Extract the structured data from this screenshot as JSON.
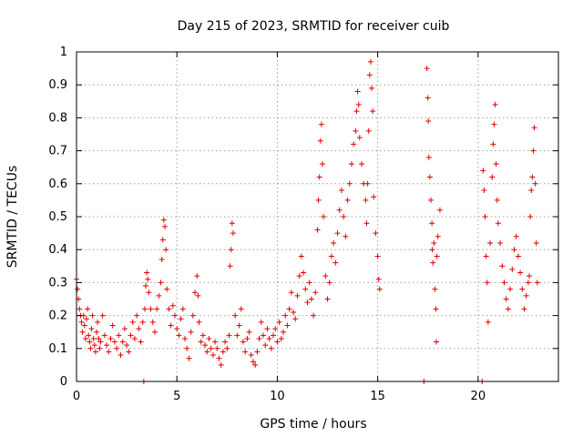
{
  "chart_data": {
    "type": "scatter",
    "title": "Day 215 of 2023, SRMTID for receiver cuib",
    "xlabel": "GPS time / hours",
    "ylabel": "SRMTID / TECUs",
    "xlim": [
      0,
      24
    ],
    "ylim": [
      0,
      1
    ],
    "xticks": [
      0,
      5,
      10,
      15,
      20
    ],
    "yticks": [
      0,
      0.1,
      0.2,
      0.3,
      0.4,
      0.5,
      0.6,
      0.7,
      0.8,
      0.9,
      1
    ],
    "xtick_labels": [
      "0",
      "5",
      "10",
      "15",
      "20"
    ],
    "ytick_labels": [
      "0",
      "0.1",
      "0.2",
      "0.3",
      "0.4",
      "0.5",
      "0.6",
      "0.7",
      "0.8",
      "0.9",
      "1"
    ],
    "grid": true,
    "marker": "plus",
    "color": "#e00000",
    "series": [
      {
        "name": "SRMTID",
        "points": [
          [
            0.0,
            0.31
          ],
          [
            0.05,
            0.28
          ],
          [
            0.1,
            0.25
          ],
          [
            0.15,
            0.22
          ],
          [
            0.2,
            0.2
          ],
          [
            0.25,
            0.18
          ],
          [
            0.3,
            0.15
          ],
          [
            0.35,
            0.2
          ],
          [
            0.4,
            0.17
          ],
          [
            0.45,
            0.13
          ],
          [
            0.5,
            0.19
          ],
          [
            0.55,
            0.22
          ],
          [
            0.6,
            0.14
          ],
          [
            0.65,
            0.12
          ],
          [
            0.7,
            0.1
          ],
          [
            0.75,
            0.16
          ],
          [
            0.8,
            0.2
          ],
          [
            0.85,
            0.13
          ],
          [
            0.9,
            0.11
          ],
          [
            0.95,
            0.09
          ],
          [
            1.0,
            0.15
          ],
          [
            1.05,
            0.18
          ],
          [
            1.1,
            0.13
          ],
          [
            1.15,
            0.1
          ],
          [
            1.2,
            0.12
          ],
          [
            1.3,
            0.2
          ],
          [
            1.4,
            0.14
          ],
          [
            1.5,
            0.11
          ],
          [
            1.6,
            0.09
          ],
          [
            1.7,
            0.13
          ],
          [
            1.8,
            0.17
          ],
          [
            1.9,
            0.12
          ],
          [
            2.0,
            0.1
          ],
          [
            2.1,
            0.14
          ],
          [
            2.2,
            0.08
          ],
          [
            2.3,
            0.12
          ],
          [
            2.4,
            0.16
          ],
          [
            2.5,
            0.11
          ],
          [
            2.6,
            0.09
          ],
          [
            2.7,
            0.14
          ],
          [
            2.8,
            0.18
          ],
          [
            2.9,
            0.13
          ],
          [
            3.0,
            0.2
          ],
          [
            3.1,
            0.16
          ],
          [
            3.2,
            0.12
          ],
          [
            3.3,
            0.18
          ],
          [
            3.35,
            0.0
          ],
          [
            3.4,
            0.22
          ],
          [
            3.45,
            0.29
          ],
          [
            3.5,
            0.33
          ],
          [
            3.55,
            0.31
          ],
          [
            3.6,
            0.27
          ],
          [
            3.7,
            0.22
          ],
          [
            3.8,
            0.18
          ],
          [
            3.9,
            0.15
          ],
          [
            4.0,
            0.22
          ],
          [
            4.1,
            0.26
          ],
          [
            4.2,
            0.3
          ],
          [
            4.25,
            0.37
          ],
          [
            4.3,
            0.43
          ],
          [
            4.35,
            0.49
          ],
          [
            4.4,
            0.47
          ],
          [
            4.45,
            0.4
          ],
          [
            4.5,
            0.28
          ],
          [
            4.6,
            0.22
          ],
          [
            4.7,
            0.17
          ],
          [
            4.8,
            0.23
          ],
          [
            4.9,
            0.2
          ],
          [
            5.0,
            0.16
          ],
          [
            5.1,
            0.14
          ],
          [
            5.2,
            0.19
          ],
          [
            5.3,
            0.22
          ],
          [
            5.4,
            0.13
          ],
          [
            5.5,
            0.1
          ],
          [
            5.6,
            0.07
          ],
          [
            5.7,
            0.15
          ],
          [
            5.8,
            0.2
          ],
          [
            5.9,
            0.27
          ],
          [
            6.0,
            0.32
          ],
          [
            6.05,
            0.26
          ],
          [
            6.1,
            0.18
          ],
          [
            6.2,
            0.12
          ],
          [
            6.3,
            0.14
          ],
          [
            6.4,
            0.11
          ],
          [
            6.5,
            0.09
          ],
          [
            6.6,
            0.13
          ],
          [
            6.7,
            0.1
          ],
          [
            6.8,
            0.08
          ],
          [
            6.9,
            0.12
          ],
          [
            7.0,
            0.1
          ],
          [
            7.1,
            0.07
          ],
          [
            7.2,
            0.05
          ],
          [
            7.3,
            0.09
          ],
          [
            7.4,
            0.12
          ],
          [
            7.5,
            0.1
          ],
          [
            7.6,
            0.14
          ],
          [
            7.65,
            0.35
          ],
          [
            7.7,
            0.4
          ],
          [
            7.75,
            0.48
          ],
          [
            7.8,
            0.45
          ],
          [
            7.9,
            0.2
          ],
          [
            8.0,
            0.14
          ],
          [
            8.1,
            0.17
          ],
          [
            8.2,
            0.22
          ],
          [
            8.3,
            0.12
          ],
          [
            8.4,
            0.09
          ],
          [
            8.5,
            0.13
          ],
          [
            8.6,
            0.15
          ],
          [
            8.7,
            0.08
          ],
          [
            8.8,
            0.06
          ],
          [
            8.9,
            0.05
          ],
          [
            9.0,
            0.09
          ],
          [
            9.1,
            0.13
          ],
          [
            9.2,
            0.18
          ],
          [
            9.3,
            0.14
          ],
          [
            9.4,
            0.11
          ],
          [
            9.5,
            0.16
          ],
          [
            9.6,
            0.13
          ],
          [
            9.7,
            0.1
          ],
          [
            9.8,
            0.14
          ],
          [
            9.9,
            0.16
          ],
          [
            10.0,
            0.12
          ],
          [
            10.1,
            0.18
          ],
          [
            10.2,
            0.13
          ],
          [
            10.3,
            0.15
          ],
          [
            10.4,
            0.2
          ],
          [
            10.5,
            0.17
          ],
          [
            10.6,
            0.22
          ],
          [
            10.7,
            0.27
          ],
          [
            10.8,
            0.21
          ],
          [
            10.9,
            0.19
          ],
          [
            11.0,
            0.26
          ],
          [
            11.1,
            0.32
          ],
          [
            11.2,
            0.38
          ],
          [
            11.3,
            0.33
          ],
          [
            11.4,
            0.28
          ],
          [
            11.5,
            0.24
          ],
          [
            11.6,
            0.3
          ],
          [
            11.7,
            0.25
          ],
          [
            11.8,
            0.2
          ],
          [
            11.9,
            0.27
          ],
          [
            12.0,
            0.46
          ],
          [
            12.05,
            0.55
          ],
          [
            12.1,
            0.62
          ],
          [
            12.15,
            0.73
          ],
          [
            12.2,
            0.78
          ],
          [
            12.25,
            0.66
          ],
          [
            12.3,
            0.5
          ],
          [
            12.4,
            0.32
          ],
          [
            12.5,
            0.25
          ],
          [
            12.6,
            0.3
          ],
          [
            12.7,
            0.38
          ],
          [
            12.8,
            0.42
          ],
          [
            12.9,
            0.36
          ],
          [
            13.0,
            0.45
          ],
          [
            13.1,
            0.52
          ],
          [
            13.2,
            0.58
          ],
          [
            13.3,
            0.5
          ],
          [
            13.4,
            0.44
          ],
          [
            13.5,
            0.55
          ],
          [
            13.6,
            0.6
          ],
          [
            13.7,
            0.66
          ],
          [
            13.8,
            0.72
          ],
          [
            13.9,
            0.76
          ],
          [
            13.95,
            0.82
          ],
          [
            14.0,
            0.88
          ],
          [
            14.05,
            0.84
          ],
          [
            14.1,
            0.74
          ],
          [
            14.2,
            0.66
          ],
          [
            14.3,
            0.6
          ],
          [
            14.4,
            0.55
          ],
          [
            14.45,
            0.48
          ],
          [
            14.5,
            0.6
          ],
          [
            14.55,
            0.76
          ],
          [
            14.6,
            0.93
          ],
          [
            14.65,
            0.97
          ],
          [
            14.7,
            0.89
          ],
          [
            14.75,
            0.82
          ],
          [
            14.8,
            0.56
          ],
          [
            14.9,
            0.45
          ],
          [
            15.0,
            0.38
          ],
          [
            15.05,
            0.31
          ],
          [
            15.1,
            0.28
          ],
          [
            17.3,
            0.0
          ],
          [
            17.45,
            0.95
          ],
          [
            17.5,
            0.86
          ],
          [
            17.52,
            0.79
          ],
          [
            17.55,
            0.68
          ],
          [
            17.6,
            0.62
          ],
          [
            17.65,
            0.55
          ],
          [
            17.7,
            0.48
          ],
          [
            17.72,
            0.4
          ],
          [
            17.75,
            0.36
          ],
          [
            17.8,
            0.42
          ],
          [
            17.85,
            0.28
          ],
          [
            17.9,
            0.22
          ],
          [
            17.92,
            0.12
          ],
          [
            17.95,
            0.38
          ],
          [
            18.0,
            0.44
          ],
          [
            18.1,
            0.52
          ],
          [
            20.2,
            0.0
          ],
          [
            20.25,
            0.64
          ],
          [
            20.3,
            0.58
          ],
          [
            20.35,
            0.5
          ],
          [
            20.4,
            0.38
          ],
          [
            20.45,
            0.3
          ],
          [
            20.5,
            0.18
          ],
          [
            20.6,
            0.42
          ],
          [
            20.7,
            0.62
          ],
          [
            20.75,
            0.72
          ],
          [
            20.8,
            0.78
          ],
          [
            20.85,
            0.84
          ],
          [
            20.9,
            0.66
          ],
          [
            20.95,
            0.55
          ],
          [
            21.0,
            0.48
          ],
          [
            21.1,
            0.42
          ],
          [
            21.2,
            0.35
          ],
          [
            21.3,
            0.3
          ],
          [
            21.4,
            0.25
          ],
          [
            21.5,
            0.22
          ],
          [
            21.6,
            0.28
          ],
          [
            21.7,
            0.34
          ],
          [
            21.8,
            0.4
          ],
          [
            21.9,
            0.44
          ],
          [
            22.0,
            0.38
          ],
          [
            22.1,
            0.33
          ],
          [
            22.2,
            0.28
          ],
          [
            22.3,
            0.22
          ],
          [
            22.4,
            0.26
          ],
          [
            22.5,
            0.3
          ],
          [
            22.55,
            0.32
          ],
          [
            22.6,
            0.5
          ],
          [
            22.65,
            0.58
          ],
          [
            22.7,
            0.62
          ],
          [
            22.75,
            0.7
          ],
          [
            22.8,
            0.77
          ],
          [
            22.85,
            0.6
          ],
          [
            22.9,
            0.42
          ],
          [
            22.95,
            0.3
          ]
        ]
      }
    ]
  }
}
